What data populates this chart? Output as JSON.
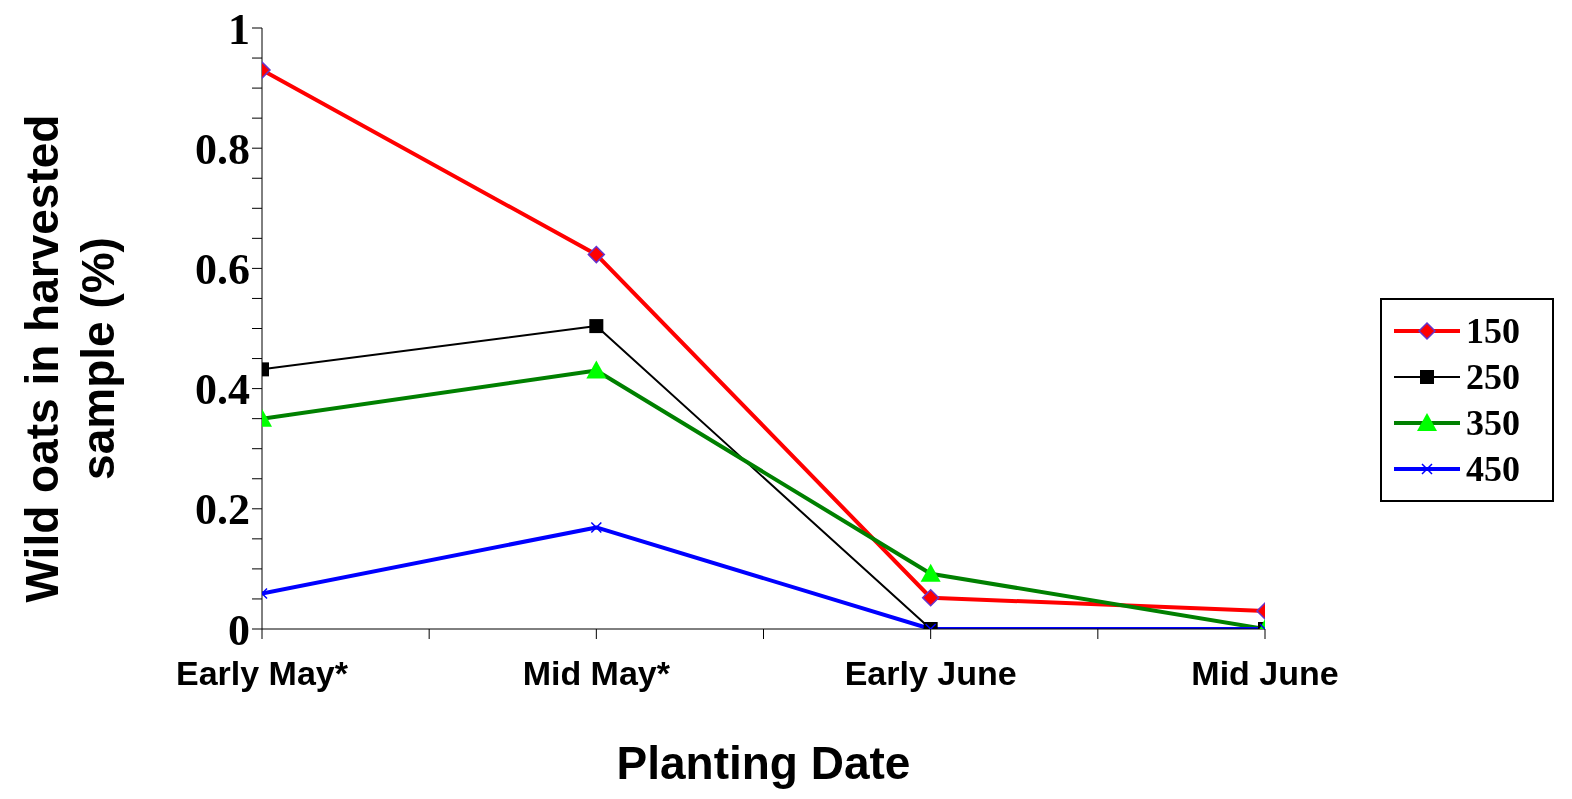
{
  "chart_data": {
    "type": "line",
    "xlabel": "Planting Date",
    "ylabel": "Wild oats in harvested sample (%)",
    "categories": [
      "Early May*",
      "Mid May*",
      "Early June",
      "Mid June"
    ],
    "series": [
      {
        "name": "150",
        "color": "#ff0000",
        "marker": "diamond",
        "values": [
          0.93,
          0.623,
          0.052,
          0.03
        ]
      },
      {
        "name": "250",
        "color": "#000000",
        "marker": "square",
        "values": [
          0.432,
          0.504,
          0,
          0
        ]
      },
      {
        "name": "350",
        "color": "#008000",
        "marker": "triangle",
        "values": [
          0.35,
          0.43,
          0.092,
          0
        ]
      },
      {
        "name": "450",
        "color": "#0000ff",
        "marker": "cross",
        "values": [
          0.059,
          0.169,
          0,
          0
        ]
      }
    ],
    "ylim": [
      0,
      1
    ],
    "yticks": [
      0,
      {
        "value": 0.05,
        "label": null
      },
      {
        "value": 0.1,
        "label": null
      },
      {
        "value": 0.15,
        "label": null
      },
      0.2,
      {
        "value": 0.25,
        "label": null
      },
      {
        "value": 0.3,
        "label": null
      },
      {
        "value": 0.35,
        "label": null
      },
      0.4,
      {
        "value": 0.45,
        "label": null
      },
      {
        "value": 0.5,
        "label": null
      },
      {
        "value": 0.55,
        "label": null
      },
      0.6,
      {
        "value": 0.65,
        "label": null
      },
      {
        "value": 0.7,
        "label": null
      },
      {
        "value": 0.75,
        "label": null
      },
      0.8,
      {
        "value": 0.85,
        "label": null
      },
      {
        "value": 0.9,
        "label": null
      },
      {
        "value": 0.95,
        "label": null
      },
      1
    ],
    "legend": "right",
    "line_style": "solid"
  }
}
